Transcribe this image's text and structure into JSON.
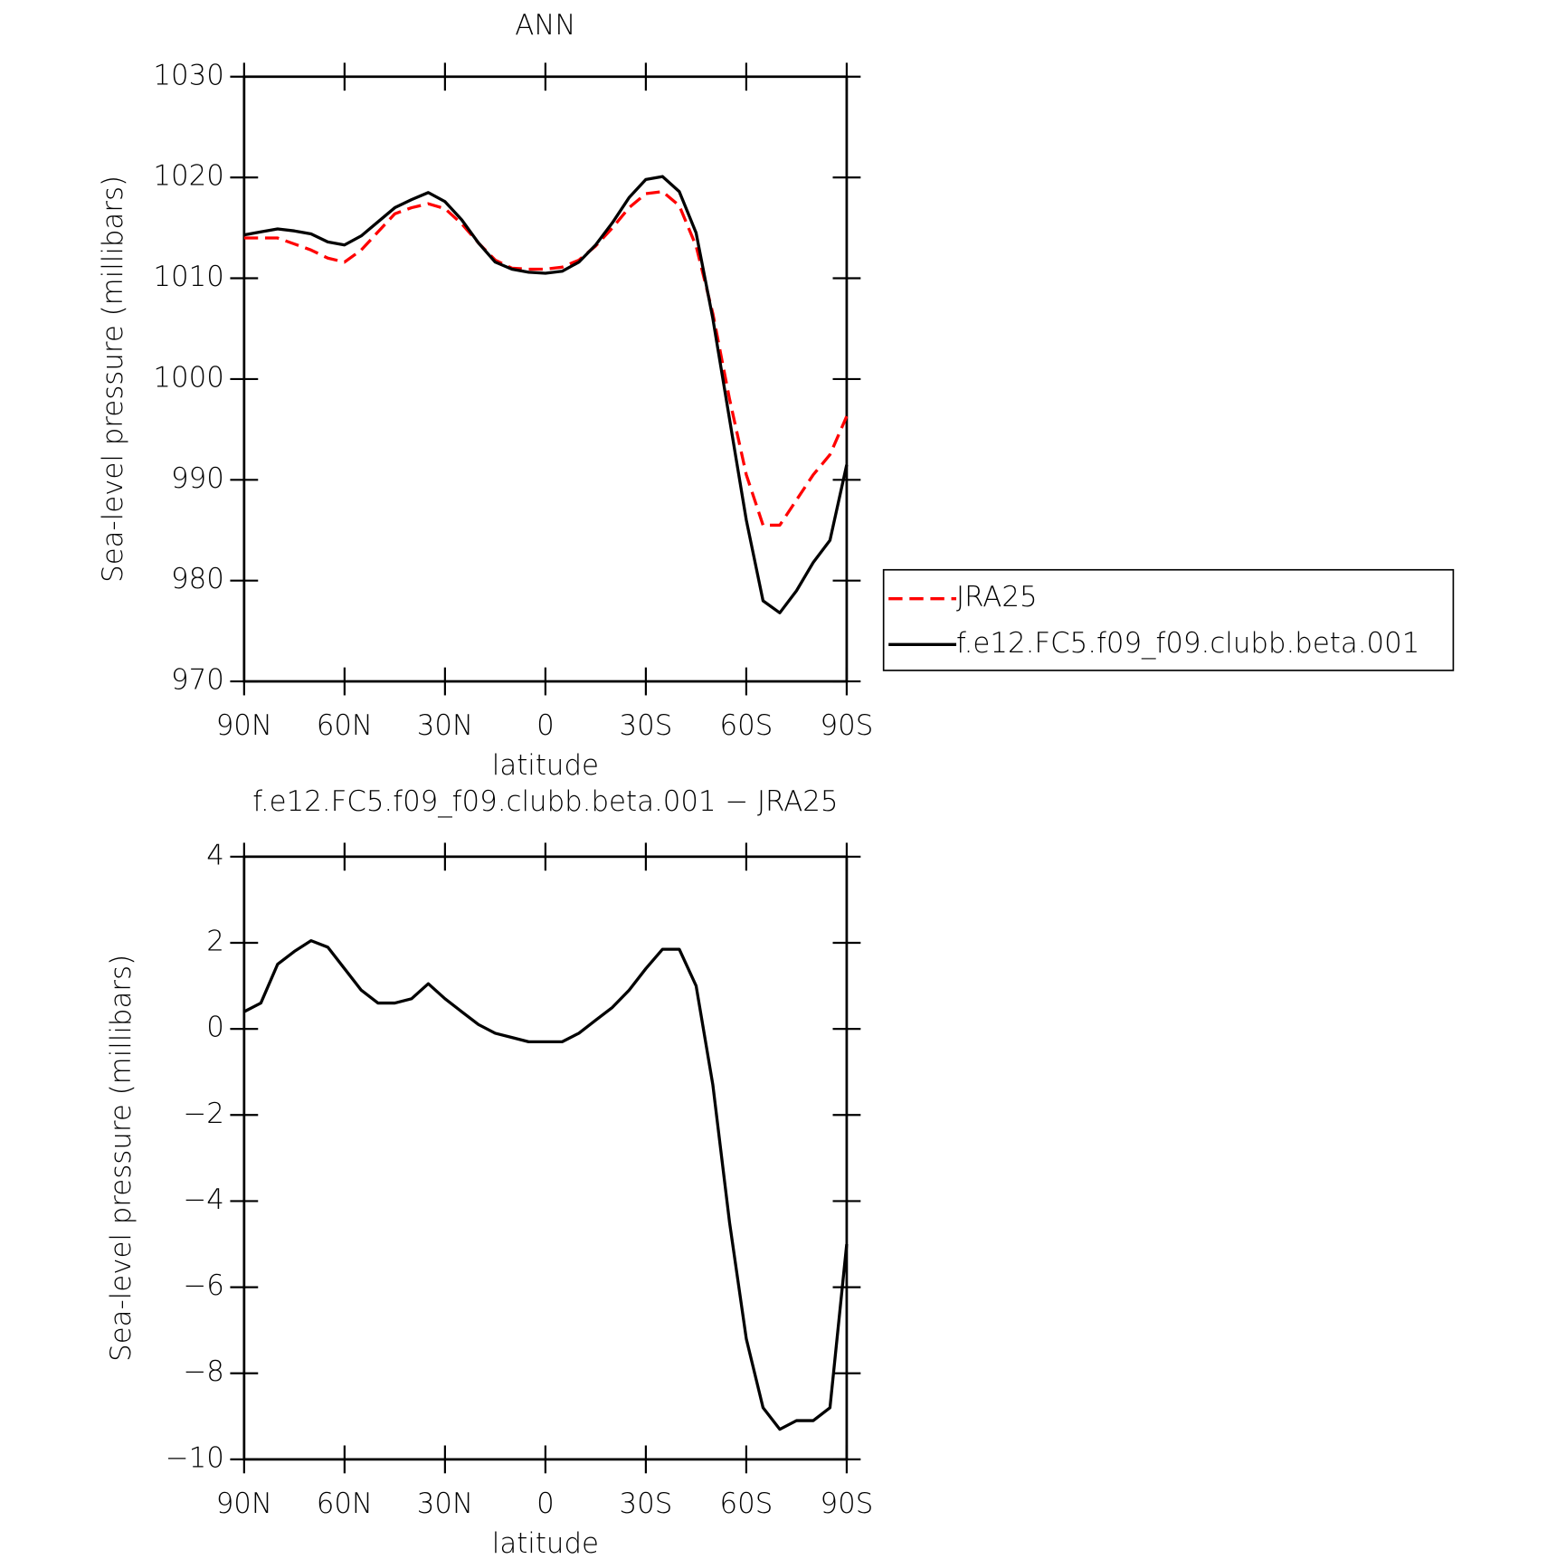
{
  "chart_data": [
    {
      "type": "line",
      "title": "ANN",
      "xlabel": "latitude",
      "ylabel": "Sea-level pressure (millibars)",
      "x": [
        90,
        85,
        80,
        75,
        70,
        65,
        60,
        55,
        50,
        45,
        40,
        35,
        30,
        25,
        20,
        15,
        10,
        5,
        0,
        -5,
        -10,
        -15,
        -20,
        -25,
        -30,
        -35,
        -40,
        -45,
        -50,
        -55,
        -60,
        -65,
        -70,
        -75,
        -80,
        -85,
        -90
      ],
      "series": [
        {
          "name": "JRA25",
          "color": "#ff0000",
          "line_style": "dashed",
          "values": [
            1014.0,
            1014.0,
            1014.0,
            1013.4,
            1012.8,
            1012.0,
            1011.6,
            1012.8,
            1014.6,
            1016.4,
            1017.0,
            1017.4,
            1016.9,
            1015.4,
            1013.5,
            1011.8,
            1011.0,
            1010.9,
            1010.9,
            1011.1,
            1011.8,
            1013.2,
            1015.0,
            1017.0,
            1018.4,
            1018.6,
            1017.2,
            1013.2,
            1006.5,
            998.0,
            990.5,
            985.5,
            985.5,
            988.0,
            990.5,
            992.5,
            996.3
          ]
        },
        {
          "name": "f.e12.FC5.f09_f09.clubb.beta.001",
          "color": "#000000",
          "line_style": "solid",
          "values": [
            1014.3,
            1014.6,
            1014.9,
            1014.7,
            1014.4,
            1013.6,
            1013.3,
            1014.2,
            1015.6,
            1017.0,
            1017.8,
            1018.5,
            1017.6,
            1015.8,
            1013.5,
            1011.6,
            1010.9,
            1010.6,
            1010.5,
            1010.7,
            1011.6,
            1013.3,
            1015.5,
            1018.0,
            1019.8,
            1020.1,
            1018.6,
            1014.5,
            1006.0,
            996.0,
            986.0,
            978.0,
            976.8,
            979.0,
            981.8,
            984.0,
            991.5
          ]
        }
      ],
      "xlim": [
        90,
        -90
      ],
      "xticks": [
        {
          "value": 90,
          "label": "90N"
        },
        {
          "value": 60,
          "label": "60N"
        },
        {
          "value": 30,
          "label": "30N"
        },
        0,
        {
          "value": -30,
          "label": "30S"
        },
        {
          "value": -60,
          "label": "60S"
        },
        {
          "value": -90,
          "label": "90S"
        }
      ],
      "ylim": [
        970,
        1030
      ],
      "yticks": [
        970,
        980,
        990,
        1000,
        1010,
        1020,
        1030
      ],
      "legend": "right"
    },
    {
      "type": "line",
      "title": "f.e12.FC5.f09_f09.clubb.beta.001 − JRA25",
      "xlabel": "latitude",
      "ylabel": "Sea-level pressure (millibars)",
      "x": [
        90,
        85,
        80,
        75,
        70,
        65,
        60,
        55,
        50,
        45,
        40,
        35,
        30,
        25,
        20,
        15,
        10,
        5,
        0,
        -5,
        -10,
        -15,
        -20,
        -25,
        -30,
        -35,
        -40,
        -45,
        -50,
        -55,
        -60,
        -65,
        -70,
        -75,
        -80,
        -85,
        -90
      ],
      "values": [
        0.4,
        0.6,
        1.5,
        1.8,
        2.05,
        1.9,
        1.4,
        0.9,
        0.6,
        0.6,
        0.7,
        1.05,
        0.7,
        0.4,
        0.1,
        -0.1,
        -0.2,
        -0.3,
        -0.3,
        -0.3,
        -0.1,
        0.2,
        0.5,
        0.9,
        1.4,
        1.85,
        1.85,
        1.0,
        -1.3,
        -4.5,
        -7.2,
        -8.8,
        -9.3,
        -9.1,
        -9.1,
        -8.8,
        -5.0
      ],
      "color": "#000000",
      "xlim": [
        90,
        -90
      ],
      "xticks": [
        {
          "value": 90,
          "label": "90N"
        },
        {
          "value": 60,
          "label": "60N"
        },
        {
          "value": 30,
          "label": "30N"
        },
        0,
        {
          "value": -30,
          "label": "30S"
        },
        {
          "value": -60,
          "label": "60S"
        },
        {
          "value": -90,
          "label": "90S"
        }
      ],
      "ylim": [
        -10,
        4
      ],
      "yticks": [
        {
          "value": -10,
          "label": "−10"
        },
        {
          "value": -8,
          "label": "−8"
        },
        {
          "value": -6,
          "label": "−6"
        },
        {
          "value": -4,
          "label": "−4"
        },
        {
          "value": -2,
          "label": "−2"
        },
        0,
        2,
        4
      ]
    }
  ]
}
